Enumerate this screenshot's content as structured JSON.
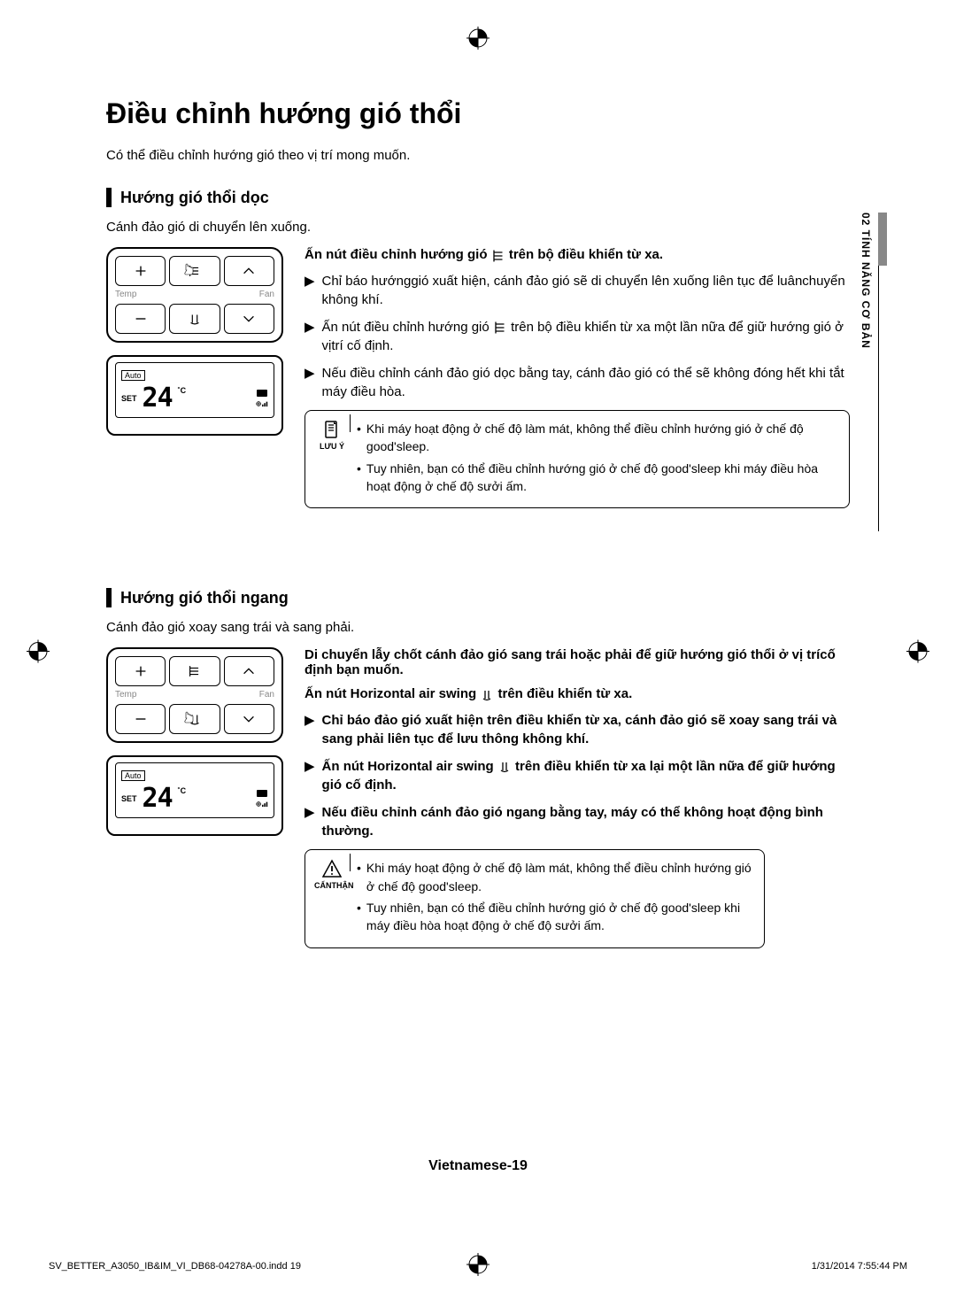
{
  "page": {
    "title": "Điều chỉnh hướng gió thổi",
    "intro": "Có thể điều chỉnh hướng gió theo vị trí mong muốn.",
    "side_tab": "02  TÍNH NĂNG CƠ BẢN",
    "page_number": "Vietnamese-19",
    "footer_left": "SV_BETTER_A3050_IB&IM_VI_DB68-04278A-00.indd   19",
    "footer_right": "1/31/2014   7:55:44 PM"
  },
  "remote": {
    "temp_label": "Temp",
    "fan_label": "Fan",
    "display": {
      "auto": "Auto",
      "set": "SET",
      "temp": "24",
      "unit": "˚C"
    }
  },
  "section1": {
    "heading": "Hướng gió thổi dọc",
    "sub_intro": "Cánh đảo gió di chuyển lên xuống.",
    "bold_prefix": "Ấn nút điều chỉnh hướng gió ",
    "bold_suffix": " trên bộ điều khiển từ xa.",
    "bullets": [
      "Chỉ báo hướnggió xuất hiện, cánh đảo gió sẽ di chuyển lên xuống liên tục để luânchuyển không khí.",
      "Ấn nút điều chỉnh hướng gió {ICON} trên bộ điều khiển từ xa một lần nữa để giữ hướng gió ở vịtrí cố định.",
      "Nếu điều chỉnh cánh đảo gió dọc bằng tay, cánh đảo gió có thể sẽ không đóng hết khi tắt máy điều hòa."
    ],
    "note_label": "LƯU Ý",
    "notes": [
      "Khi máy hoạt động ở chế độ làm mát, không thể điều chỉnh hướng gió ở chế độ good'sleep.",
      "Tuy nhiên, bạn có thể điều chỉnh hướng gió ở chế độ good'sleep khi máy điều hòa hoạt động ở chế độ sưởi ấm."
    ]
  },
  "section2": {
    "heading": "Hướng gió thổi ngang",
    "sub_intro": "Cánh đảo gió xoay sang trái và sang phải.",
    "line1": "Di chuyển lẫy chốt cánh đảo gió sang trái hoặc phải để giữ hướng gió thổi ở vị trícố định bạn muốn.",
    "line2_prefix": "Ấn nút Horizontal air swing  ",
    "line2_suffix": " trên điều khiển từ xa.",
    "bullets": [
      "Chỉ báo đảo gió xuất hiện trên điều khiển từ xa, cánh đảo gió sẽ xoay sang trái và sang phải liên tục để lưu thông không khí.",
      "Ấn nút Horizontal air swing  {ICON} trên điều khiển từ xa lại một lần nữa để giữ hướng gió cố định.",
      "Nếu điều chỉnh cánh đảo gió ngang bằng tay, máy có thể không hoạt động bình thường."
    ],
    "caution_label": "CẨNTHẬN",
    "cautions": [
      "Khi máy hoạt động ở chế độ làm mát, không thể điều chỉnh hướng gió ở chế độ good'sleep.",
      "Tuy nhiên, bạn có thể điều chỉnh hướng gió ở chế độ good'sleep khi máy điều hòa hoạt động ở chế độ sưởi ấm."
    ]
  },
  "colors": {
    "text": "#000000",
    "bg": "#ffffff",
    "side_marker": "#888888"
  }
}
